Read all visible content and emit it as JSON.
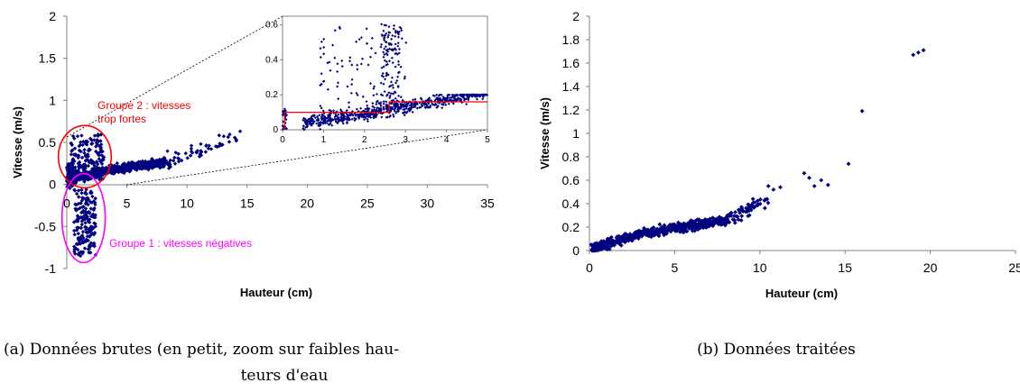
{
  "colors": {
    "marker": "#00007f",
    "group1": "#ff00ff",
    "group2": "#ff0000",
    "zoom_box": "#ff0000"
  },
  "chart_data": [
    {
      "type": "scatter",
      "title": "",
      "xlabel": "Hauteur (cm)",
      "ylabel": "Vitesse (m/s)",
      "xlim": [
        0,
        35
      ],
      "ylim": [
        -1,
        2
      ],
      "xticks": [
        "0",
        "5",
        "10",
        "15",
        "20",
        "25",
        "30",
        "35"
      ],
      "yticks": [
        "-1",
        "-0.5",
        "0",
        "0.5",
        "1",
        "1.5",
        "2"
      ],
      "grid": false,
      "annotations": [
        {
          "text_lines": [
            "Groupe 2 : vitesses",
            "trop fortes"
          ],
          "color": "#ff0000",
          "shape": "ellipse",
          "center": [
            1.5,
            0.33
          ],
          "rx": 2.2,
          "ry": 0.37
        },
        {
          "text_lines": [
            "Groupe 1 : vitesses négatives"
          ],
          "color": "#ff00ff",
          "shape": "ellipse",
          "center": [
            1.4,
            -0.4
          ],
          "rx": 1.8,
          "ry": 0.53
        }
      ],
      "inset": {
        "type": "scatter",
        "xlim": [
          0,
          5
        ],
        "ylim": [
          0,
          0.65
        ],
        "xticks": [
          "0",
          "1",
          "2",
          "3",
          "4",
          "5"
        ],
        "yticks": [
          "0",
          "0.2",
          "0.4",
          "0.6"
        ],
        "threshold_outline": [
          [
            0.05,
            0
          ],
          [
            0.05,
            0.1
          ],
          [
            2.6,
            0.1
          ],
          [
            2.6,
            0.16
          ],
          [
            5,
            0.16
          ]
        ]
      }
    },
    {
      "type": "scatter",
      "title": "",
      "xlabel": "Hauteur (cm)",
      "ylabel": "Vitesse (m/s)",
      "xlim": [
        0,
        25
      ],
      "ylim": [
        0,
        2
      ],
      "xticks": [
        "0",
        "5",
        "10",
        "15",
        "20",
        "25"
      ],
      "yticks": [
        "0",
        "0.2",
        "0.4",
        "0.6",
        "0.8",
        "1",
        "1.2",
        "1.4",
        "1.6",
        "1.8",
        "2"
      ],
      "grid": false,
      "outliers": [
        [
          10.5,
          0.55
        ],
        [
          10.8,
          0.52
        ],
        [
          11.2,
          0.54
        ],
        [
          12.6,
          0.66
        ],
        [
          12.9,
          0.62
        ],
        [
          13.2,
          0.55
        ],
        [
          13.6,
          0.6
        ],
        [
          14.0,
          0.56
        ],
        [
          15.2,
          0.74
        ],
        [
          16.0,
          1.19
        ],
        [
          19.0,
          1.67
        ],
        [
          19.3,
          1.69
        ],
        [
          19.6,
          1.71
        ]
      ]
    }
  ],
  "captions": {
    "a_line1": "(a) Données brutes (en petit, zoom sur faibles hau-",
    "a_line2": "teurs d'eau",
    "b": "(b) Données traitées"
  }
}
